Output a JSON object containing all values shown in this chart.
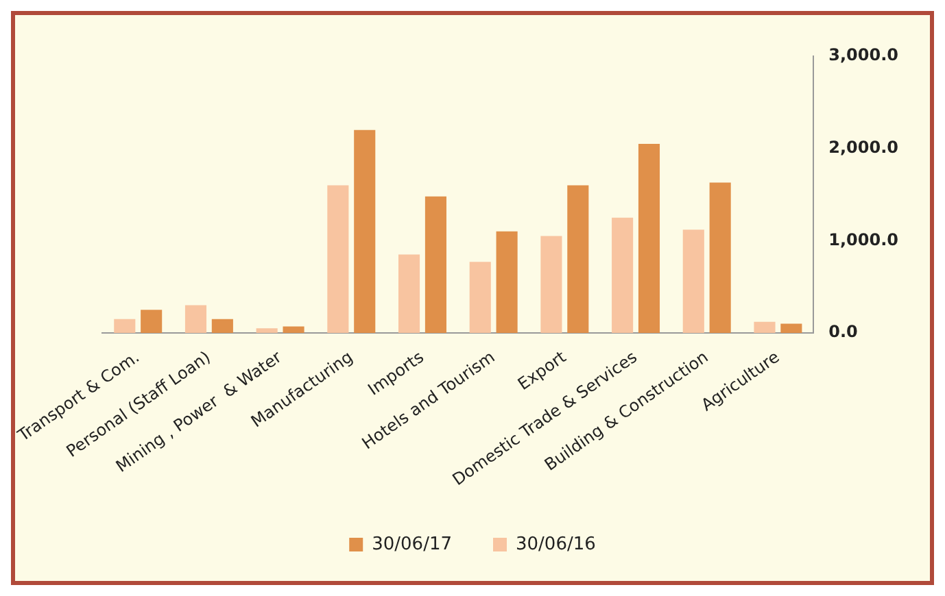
{
  "chart_data": {
    "type": "bar",
    "categories": [
      "Transport & Com.",
      "Personal (Staff Loan)",
      "Mining , Power  & Water",
      "Manufacturing",
      "Imports",
      "Hotels and Tourism",
      "Export",
      "Domestic Trade & Services",
      "Building & Construction",
      "Agriculture"
    ],
    "series": [
      {
        "name": "30/06/16",
        "color": "#f8c4a0",
        "values": [
          150,
          300,
          50,
          1600,
          850,
          770,
          1050,
          1250,
          1120,
          120
        ]
      },
      {
        "name": "30/06/17",
        "color": "#e0904a",
        "values": [
          250,
          150,
          70,
          2200,
          1480,
          1100,
          1600,
          2050,
          1630,
          100
        ]
      }
    ],
    "ylim": [
      0,
      3000
    ],
    "yticks": [
      {
        "value": 0,
        "label": "0.0"
      },
      {
        "value": 1000,
        "label": "1,000.0"
      },
      {
        "value": 2000,
        "label": "2,000.0"
      },
      {
        "value": 3000,
        "label": "3,000.0"
      }
    ],
    "grid": false,
    "legend": "bottom"
  }
}
